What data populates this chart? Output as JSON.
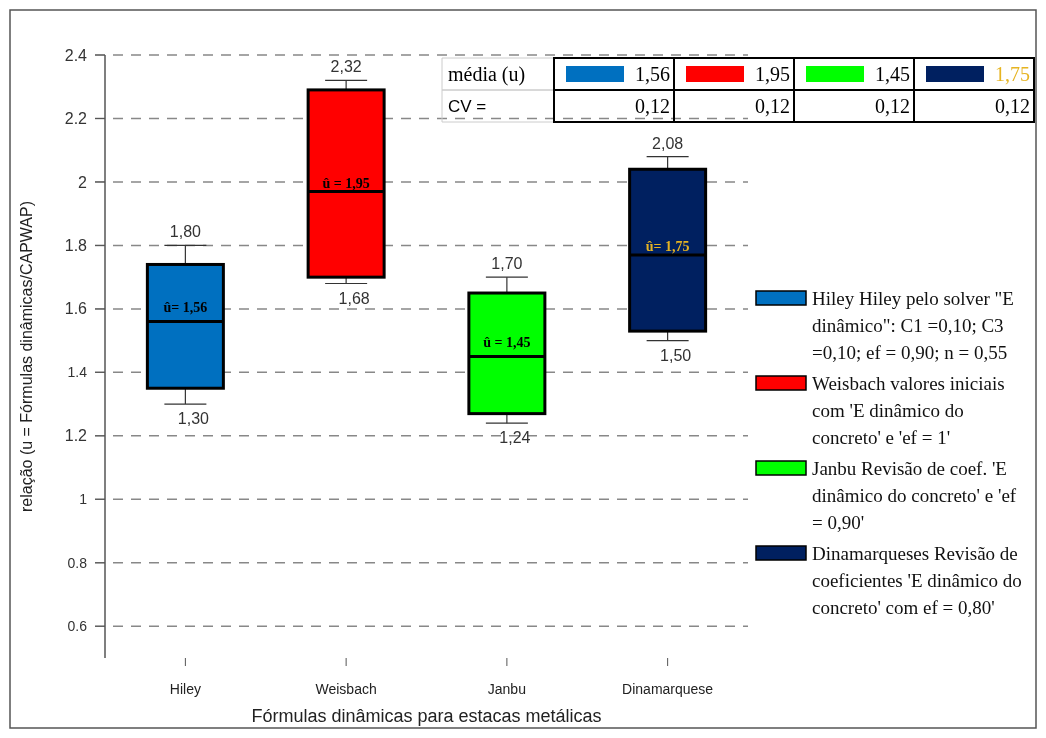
{
  "chart_data": {
    "type": "box",
    "xlabel": "Fórmulas dinâmicas para estacas metálicas",
    "ylabel": "relação (u = Fórmulas dinâmicas/CAPWAP)",
    "categories": [
      "Hiley",
      "Weisbach",
      "Janbu",
      "Dinamarquese"
    ],
    "series": [
      {
        "name": "Hiley Hiley pelo solver \"E dinâmico\": C1 =0,10; C3 =0,10; ef = 0,90; n = 0,55",
        "color": "#0070c0",
        "boxes": [
          {
            "low": 1.3,
            "q1": 1.35,
            "median": 1.56,
            "q3": 1.74,
            "high": 1.8
          },
          null,
          null,
          null
        ]
      },
      {
        "name": "Weisbach valores iniciais com 'E  dinâmico  do concreto' e 'ef = 1'",
        "color": "#ff0000",
        "boxes": [
          null,
          {
            "low": 1.68,
            "q1": 1.7,
            "median": 1.97,
            "q3": 2.29,
            "high": 2.32
          },
          null,
          null
        ]
      },
      {
        "name": "Janbu Revisão de coef. 'E dinâmico do concreto' e 'ef = 0,90'",
        "color": "#00ff00",
        "boxes": [
          null,
          null,
          {
            "low": 1.24,
            "q1": 1.27,
            "median": 1.45,
            "q3": 1.65,
            "high": 1.7
          },
          null
        ]
      },
      {
        "name": "Dinamarqueses Revisão de coeficientes 'E dinâmico do concreto'  com ef = 0,80'",
        "color": "#002060",
        "boxes": [
          null,
          null,
          null,
          {
            "low": 1.5,
            "q1": 1.53,
            "median": 1.77,
            "q3": 2.04,
            "high": 2.08
          }
        ]
      }
    ],
    "ylim": [
      0.5,
      2.4
    ],
    "yticks": [
      0.6,
      0.8,
      1,
      1.2,
      1.4,
      1.6,
      1.8,
      2,
      2.2,
      2.4
    ],
    "grid": "y",
    "legend": "right",
    "annotations": [
      {
        "text": "1,80",
        "x": "Hiley",
        "y": 1.8
      },
      {
        "text": "1,30",
        "x": "Hiley",
        "y": 1.3
      },
      {
        "text": "û= 1,56",
        "x": "Hiley",
        "y": 1.56
      },
      {
        "text": "2,32",
        "x": "Weisbach",
        "y": 2.32
      },
      {
        "text": "1,68",
        "x": "Weisbach",
        "y": 1.68
      },
      {
        "text": "û = 1,95",
        "x": "Weisbach",
        "y": 1.95
      },
      {
        "text": "1,70",
        "x": "Janbu",
        "y": 1.7
      },
      {
        "text": "1,24",
        "x": "Janbu",
        "y": 1.24
      },
      {
        "text": "û = 1,45",
        "x": "Janbu",
        "y": 1.45
      },
      {
        "text": "2,08",
        "x": "Dinamarquese",
        "y": 2.08
      },
      {
        "text": "1,50",
        "x": "Dinamarquese",
        "y": 1.5
      },
      {
        "text": "û= 1,75",
        "x": "Dinamarquese",
        "y": 1.75
      },
      "média (u)",
      "1,56",
      "1,95",
      "1,45",
      "1,75",
      "CV =",
      "0,12",
      "0,12",
      "0,12",
      "0,12"
    ]
  }
}
